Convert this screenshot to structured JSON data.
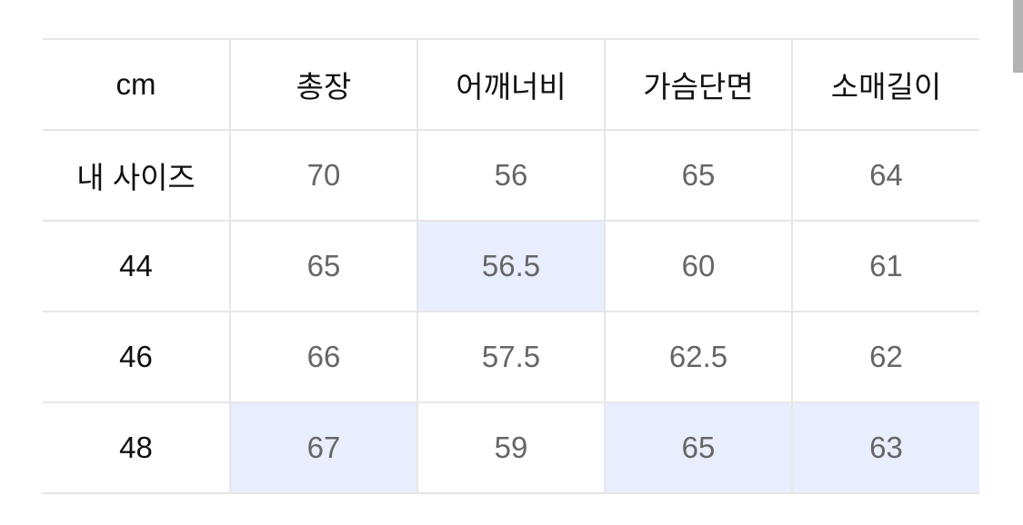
{
  "table": {
    "headers": [
      "cm",
      "총장",
      "어깨너비",
      "가슴단면",
      "소매길이"
    ],
    "rows": [
      {
        "label": "내 사이즈",
        "values": [
          "70",
          "56",
          "65",
          "64"
        ],
        "highlight": [
          false,
          false,
          false,
          false
        ]
      },
      {
        "label": "44",
        "values": [
          "65",
          "56.5",
          "60",
          "61"
        ],
        "highlight": [
          false,
          true,
          false,
          false
        ]
      },
      {
        "label": "46",
        "values": [
          "66",
          "57.5",
          "62.5",
          "62"
        ],
        "highlight": [
          false,
          false,
          false,
          false
        ]
      },
      {
        "label": "48",
        "values": [
          "67",
          "59",
          "65",
          "63"
        ],
        "highlight": [
          true,
          false,
          true,
          true
        ]
      }
    ]
  },
  "colors": {
    "highlight": "#e8eefd",
    "border": "#e6e6e6",
    "value_text": "#666666",
    "label_text": "#111111"
  }
}
